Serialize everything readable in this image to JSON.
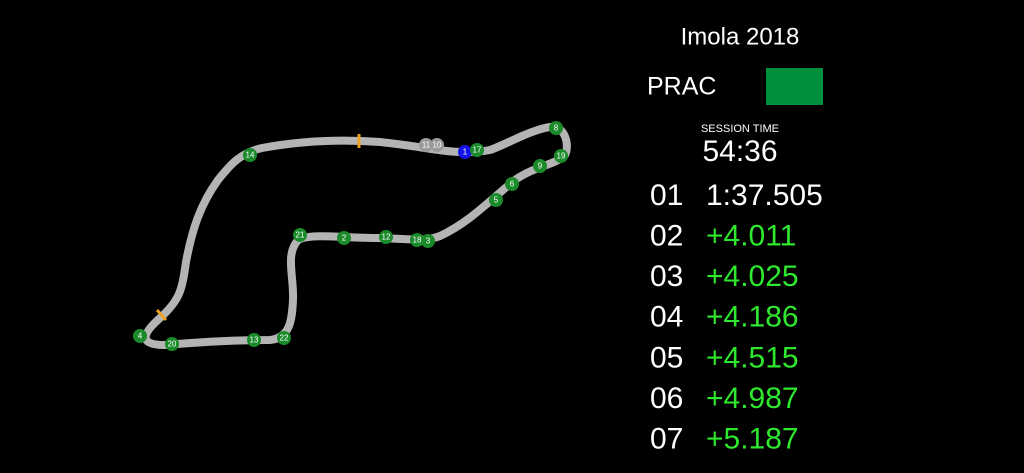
{
  "title": "Imola 2018",
  "session": {
    "label": "PRAC",
    "flag_color": "#008f3b"
  },
  "session_time": {
    "label": "SESSION TIME",
    "value": "54:36"
  },
  "standings": [
    {
      "position": "01",
      "time": "1:37.505",
      "color": "#ffffff"
    },
    {
      "position": "02",
      "time": "+4.011",
      "color": "#2ee82e"
    },
    {
      "position": "03",
      "time": "+4.025",
      "color": "#2ee82e"
    },
    {
      "position": "04",
      "time": "+4.186",
      "color": "#2ee82e"
    },
    {
      "position": "05",
      "time": "+4.515",
      "color": "#2ee82e"
    },
    {
      "position": "06",
      "time": "+4.987",
      "color": "#2ee82e"
    },
    {
      "position": "07",
      "time": "+5.187",
      "color": "#2ee82e"
    }
  ],
  "cars": [
    {
      "label": "11",
      "color": "#9a9a9a"
    },
    {
      "label": "10",
      "color": "#9a9a9a"
    },
    {
      "label": "1",
      "color": "#1414e6"
    },
    {
      "label": "17",
      "color": "#1a8a2a"
    },
    {
      "label": "8",
      "color": "#1a8a2a"
    },
    {
      "label": "19",
      "color": "#1a8a2a"
    },
    {
      "label": "9",
      "color": "#1a8a2a"
    },
    {
      "label": "6",
      "color": "#1a8a2a"
    },
    {
      "label": "5",
      "color": "#1a8a2a"
    },
    {
      "label": "3",
      "color": "#1a8a2a"
    },
    {
      "label": "18",
      "color": "#1a8a2a"
    },
    {
      "label": "12",
      "color": "#1a8a2a"
    },
    {
      "label": "2",
      "color": "#1a8a2a"
    },
    {
      "label": "21",
      "color": "#1a8a2a"
    },
    {
      "label": "14",
      "color": "#1a8a2a"
    },
    {
      "label": "4",
      "color": "#1a8a2a"
    },
    {
      "label": "20",
      "color": "#1a8a2a"
    },
    {
      "label": "13",
      "color": "#1a8a2a"
    },
    {
      "label": "22",
      "color": "#1a8a2a"
    }
  ]
}
